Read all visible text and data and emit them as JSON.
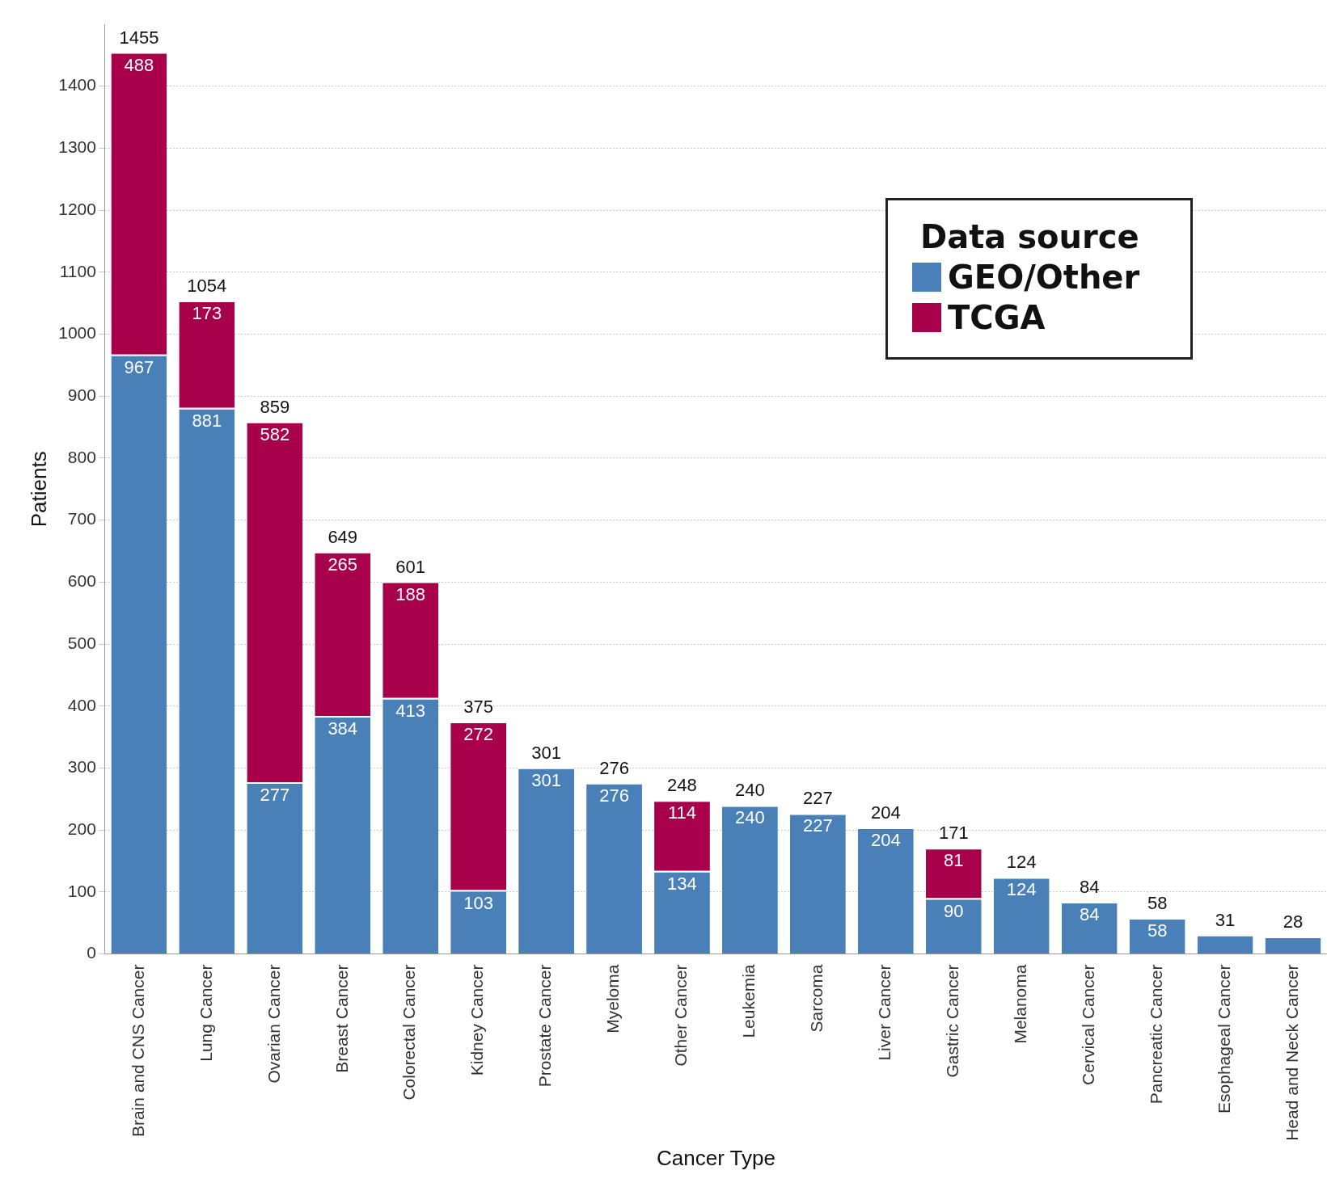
{
  "chart_data": {
    "type": "bar",
    "stacked": true,
    "xlabel": "Cancer Type",
    "ylabel": "Patients",
    "legend_title": "Data source",
    "legend": "top right",
    "grid": "y",
    "categories": [
      "Brain and CNS Cancer",
      "Lung Cancer",
      "Ovarian Cancer",
      "Breast Cancer",
      "Colorectal Cancer",
      "Kidney Cancer",
      "Prostate Cancer",
      "Myeloma",
      "Other Cancer",
      "Leukemia",
      "Sarcoma",
      "Liver Cancer",
      "Gastric Cancer",
      "Melanoma",
      "Cervical Cancer",
      "Pancreatic Cancer",
      "Esophageal Cancer",
      "Head and Neck Cancer"
    ],
    "series": [
      {
        "name": "GEO/Other",
        "color": "#4a80b8",
        "values": [
          967,
          881,
          277,
          384,
          413,
          103,
          301,
          276,
          134,
          240,
          227,
          204,
          90,
          124,
          84,
          58,
          31,
          28
        ],
        "value_labels": [
          "967",
          "881",
          "277",
          "384",
          "413",
          "103",
          "301",
          "276",
          "134",
          "240",
          "227",
          "204",
          "90",
          "124",
          "84",
          "58",
          null,
          null
        ]
      },
      {
        "name": "TCGA",
        "color": "#a8004a",
        "values": [
          488,
          173,
          582,
          265,
          188,
          272,
          null,
          null,
          114,
          null,
          null,
          null,
          81,
          null,
          null,
          null,
          null,
          null
        ],
        "value_labels": [
          "488",
          "173",
          "582",
          "265",
          "188",
          "272",
          null,
          null,
          "114",
          null,
          null,
          null,
          "81",
          null,
          null,
          null,
          null,
          null
        ]
      }
    ],
    "totals": [
      "1455",
      "1054",
      "859",
      "649",
      "601",
      "375",
      "301",
      "276",
      "248",
      "240",
      "227",
      "204",
      "171",
      "124",
      "84",
      "58",
      "31",
      "28"
    ],
    "ylim": [
      0,
      1500
    ],
    "yticks": [
      0,
      100,
      200,
      300,
      400,
      500,
      600,
      700,
      800,
      900,
      1000,
      1100,
      1200,
      1300,
      1400
    ]
  }
}
